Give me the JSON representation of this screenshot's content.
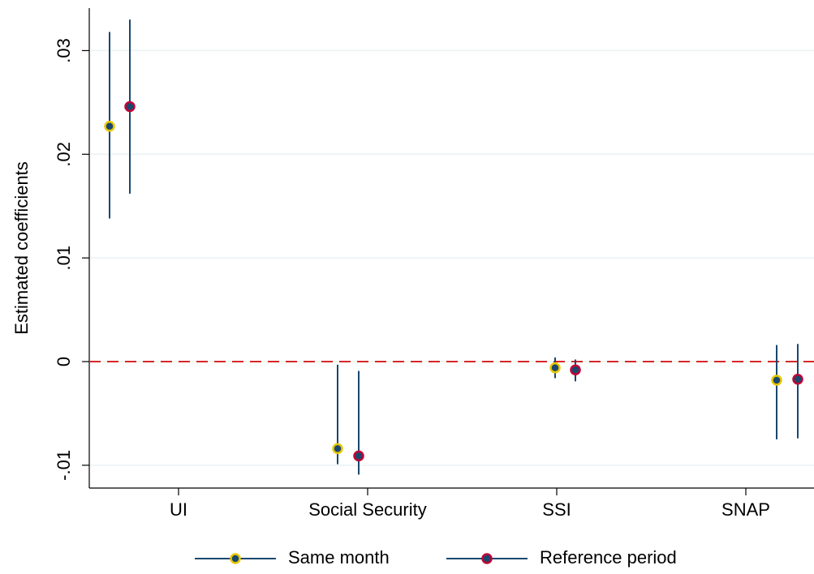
{
  "chart_data": {
    "type": "coefplot",
    "y_label": "Estimated coefficients",
    "categories": [
      "UI",
      "Social Security",
      "SSI",
      "SNAP"
    ],
    "series": [
      {
        "name": "Same month",
        "color": "#1a476f",
        "marker_edge": "#e8c800",
        "values": [
          0.0227,
          -0.0084,
          -0.0006,
          -0.0018
        ],
        "lower": [
          0.0138,
          -0.0099,
          -0.0016,
          -0.0075
        ],
        "upper": [
          0.0318,
          -0.0003,
          0.0004,
          0.0016
        ]
      },
      {
        "name": "Reference period",
        "color": "#1a476f",
        "marker_edge": "#c10534",
        "values": [
          0.0246,
          -0.0091,
          -0.0008,
          -0.0017
        ],
        "lower": [
          0.0162,
          -0.0109,
          -0.0019,
          -0.0074
        ],
        "upper": [
          0.033,
          -0.0009,
          0.0002,
          0.0017
        ]
      }
    ],
    "reference_line": 0,
    "reference_color": "#d62728",
    "ylim": [
      -0.0122,
      0.0341
    ],
    "yticks": [
      {
        "value": -0.01,
        "label": "-.01"
      },
      0,
      {
        "value": 0.01,
        "label": ".01"
      },
      {
        "value": 0.02,
        "label": ".02"
      },
      {
        "value": 0.03,
        "label": ".03"
      }
    ],
    "grid": true
  }
}
